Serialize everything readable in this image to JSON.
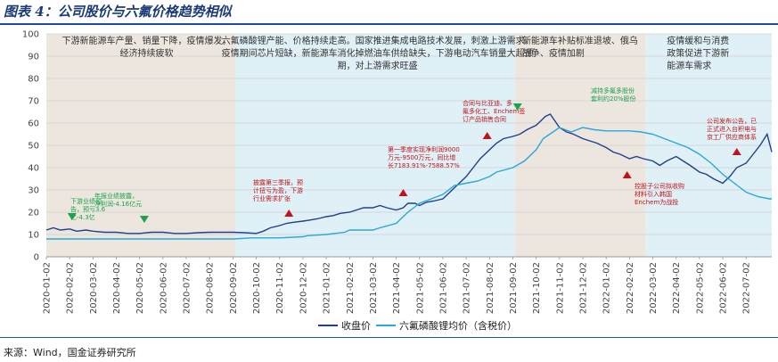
{
  "title": "图表 4：公司股价与六氟价格趋势相似",
  "source": "来源：Wind，国金证券研究所",
  "colors": {
    "stock": "#1f3f8f",
    "lipf6": "#2aa7dc",
    "shade_gray": "#ece6df",
    "shade_blue": "#dff0f6",
    "up": "#c0131a",
    "down": "#1aa34a",
    "annotation_text": "#c0131a"
  },
  "chart_data": {
    "type": "line",
    "ylim": [
      0,
      100
    ],
    "yticks": [
      0,
      10,
      20,
      30,
      40,
      50,
      60,
      70,
      80,
      90,
      100
    ],
    "xlabels": [
      "2020-01-02",
      "2020-02-02",
      "2020-03-02",
      "2020-04-02",
      "2020-05-02",
      "2020-06-02",
      "2020-07-02",
      "2020-08-02",
      "2020-09-02",
      "2020-10-02",
      "2020-11-02",
      "2020-12-02",
      "2021-01-02",
      "2021-02-02",
      "2021-03-02",
      "2021-04-02",
      "2021-05-02",
      "2021-06-02",
      "2021-07-02",
      "2021-08-02",
      "2021-09-02",
      "2021-10-02",
      "2021-11-02",
      "2021-12-02",
      "2022-01-02",
      "2022-02-02",
      "2022-03-02",
      "2022-04-02",
      "2022-05-02",
      "2022-06-02",
      "2022-07-02"
    ],
    "x_range": [
      0,
      31.1
    ],
    "series": [
      {
        "name": "收盘价",
        "key": "stock",
        "x": [
          0,
          0.3,
          0.6,
          1,
          1.3,
          1.7,
          2,
          2.5,
          3,
          3.5,
          4,
          4.5,
          5,
          5.5,
          6,
          6.5,
          7,
          7.5,
          8,
          8.5,
          9,
          9.3,
          9.6,
          10,
          10.3,
          10.6,
          11,
          11.3,
          11.6,
          12,
          12.3,
          12.6,
          13,
          13.3,
          13.6,
          14,
          14.3,
          14.6,
          15,
          15.3,
          15.5,
          15.8,
          16,
          16.3,
          16.6,
          17,
          17.3,
          17.6,
          18,
          18.3,
          18.6,
          19,
          19.3,
          19.6,
          20,
          20.3,
          20.6,
          21,
          21.2,
          21.4,
          21.6,
          21.8,
          22,
          22.3,
          22.6,
          23,
          23.3,
          23.6,
          24,
          24.3,
          24.6,
          25,
          25.3,
          25.6,
          26,
          26.3,
          26.6,
          27,
          27.3,
          27.6,
          28,
          28.3,
          28.6,
          29,
          29.3,
          29.6,
          30,
          30.3,
          30.6,
          30.9,
          31.1
        ],
        "y": [
          12,
          13,
          12,
          12.5,
          11.5,
          12,
          11.5,
          11,
          11,
          10.5,
          10.5,
          11,
          11,
          10.5,
          10.5,
          10.8,
          11,
          11,
          11,
          10.8,
          10.5,
          11.5,
          13,
          14,
          15,
          15.5,
          16,
          16.5,
          17,
          18,
          18.5,
          19.5,
          20,
          21,
          22,
          22,
          23,
          22,
          21,
          22,
          24,
          24,
          23,
          24.5,
          25,
          26,
          29,
          32,
          36,
          40,
          44,
          48,
          51,
          53,
          54,
          55,
          57,
          59,
          61,
          63,
          64,
          61,
          58,
          56,
          55,
          53,
          52,
          51,
          49,
          47,
          46,
          44,
          45,
          44,
          43,
          41,
          43,
          45,
          43,
          41,
          38,
          37,
          35,
          33,
          36,
          40,
          42,
          46,
          50,
          55,
          47
        ]
      },
      {
        "name": "六氟磷酸锂均价（含税价）",
        "key": "lipf6",
        "x": [
          0,
          1,
          2,
          3,
          4,
          5,
          6,
          7,
          8,
          8.8,
          9,
          10,
          11,
          11.2,
          12,
          12.8,
          13,
          14,
          14.3,
          15,
          15.5,
          16,
          16.5,
          17,
          17.5,
          18,
          18.5,
          19,
          19.3,
          20,
          20.5,
          21,
          21.3,
          22,
          22.5,
          23,
          23.5,
          24,
          25,
          25.5,
          26,
          26.5,
          27,
          27.5,
          28,
          28.5,
          29,
          29.5,
          30,
          30.5,
          31,
          31.1
        ],
        "y": [
          8,
          8,
          8,
          8,
          8,
          8,
          8,
          8,
          8,
          8.5,
          8.5,
          8.5,
          9,
          9.5,
          10,
          11,
          12,
          12,
          13,
          15,
          20,
          24,
          26,
          28,
          32,
          33,
          34,
          36,
          38,
          40,
          43,
          48,
          53,
          58,
          56,
          58,
          57,
          56.5,
          56.5,
          56,
          55,
          53,
          51,
          49,
          46,
          42,
          37,
          33,
          29,
          27,
          26,
          26
        ]
      }
    ],
    "period_notes": [
      {
        "key": "p1",
        "lines": [
          "下游新能源车产量、销量下降，疫情爆发，",
          "经济持续疲软"
        ]
      },
      {
        "key": "p2",
        "lines": [
          "六氟磷酸锂产能、价格持续走高。国家推进集成电路技术发展，刺激上游需求。",
          "疫情期间芯片短缺，新能源车消化掉燃油车供给缺失，下游电动汽车销量大超预",
          "期，对上游需求旺盛"
        ]
      },
      {
        "key": "p3",
        "lines": [
          "新能源车补贴标准退坡、俄乌",
          "战争、疫情加剧"
        ]
      },
      {
        "key": "p4",
        "lines": [
          "疫情缓和与消费",
          "政策促进下游新",
          "能源车需求"
        ]
      }
    ],
    "annotations": [
      {
        "key": "a1",
        "marker": "down",
        "lines": [
          "下游业绩预",
          "告，预亏3.6",
          "亿-4.3亿"
        ]
      },
      {
        "key": "a2",
        "marker": "down",
        "lines": [
          "年报业绩披露，",
          "净利润-4.16亿元"
        ]
      },
      {
        "key": "a3",
        "marker": "up",
        "lines": [
          "披露第三季报，预",
          "计扭亏为盈，下游",
          "行业需求扩张"
        ]
      },
      {
        "key": "a4",
        "marker": "up",
        "lines": [
          "第一季度实现净利润9000",
          "万元-9500万元，同比增",
          "长7183.91%-7588.57%"
        ]
      },
      {
        "key": "a5",
        "marker": "up",
        "lines": [
          "合同与比亚迪、多",
          "氟多化工、Enchem签",
          "订产品销售合同"
        ]
      },
      {
        "key": "a6",
        "marker": "down",
        "lines": [
          "减持多氟多股份",
          "套利约20%股份"
        ]
      },
      {
        "key": "a7",
        "marker": "up",
        "lines": [
          "控股子公司拟收购",
          "材料引入韩国",
          "Enchem为战投"
        ]
      },
      {
        "key": "a8",
        "marker": "up",
        "lines": [
          "公司发布公告，已",
          "正式进入台积电与",
          "京工厂供应商体系"
        ]
      }
    ]
  }
}
